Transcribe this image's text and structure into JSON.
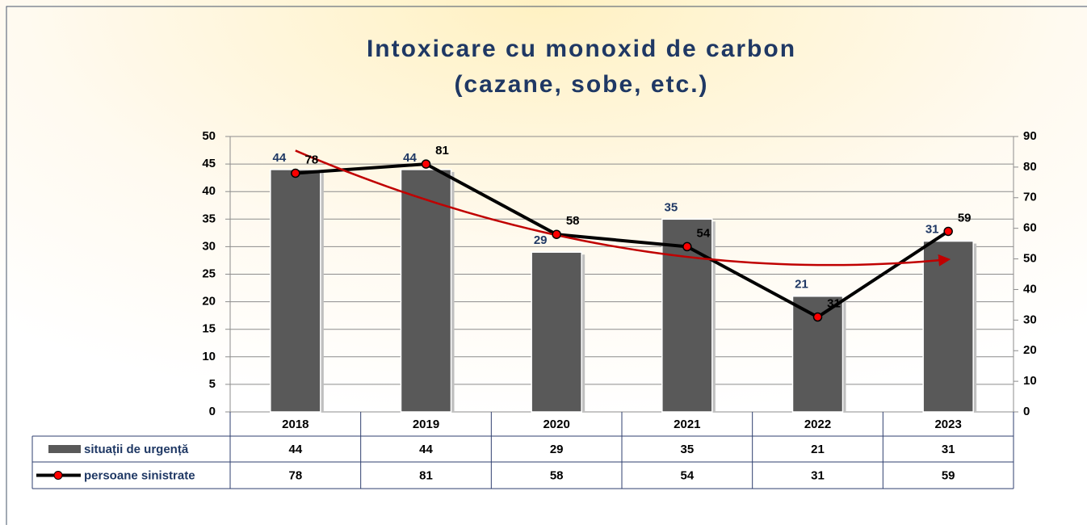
{
  "chart_data": {
    "type": "combo",
    "title": [
      "Intoxicare cu monoxid de carbon",
      "(cazane, sobe, etc.)"
    ],
    "categories": [
      "2018",
      "2019",
      "2020",
      "2021",
      "2022",
      "2023"
    ],
    "series": [
      {
        "name": "situații de urgență",
        "type": "bar",
        "color": "#595959",
        "label_color": "#1f3864",
        "values": [
          44,
          44,
          29,
          35,
          21,
          31
        ]
      },
      {
        "name": "persoane sinistrate",
        "type": "line",
        "axis": "y2",
        "color": "#000000",
        "marker_color": "#ff0000",
        "label_color": "#000000",
        "values": [
          78,
          81,
          58,
          54,
          31,
          59
        ]
      }
    ],
    "ylim": [
      0,
      50
    ],
    "yticks": [
      0,
      5,
      10,
      15,
      20,
      25,
      30,
      35,
      40,
      45,
      50
    ],
    "y2lim": [
      0,
      90
    ],
    "y2ticks": [
      0,
      10,
      20,
      30,
      40,
      50,
      60,
      70,
      80,
      90
    ],
    "grid": true,
    "data_table": true,
    "trendline_color": "#c00000"
  }
}
